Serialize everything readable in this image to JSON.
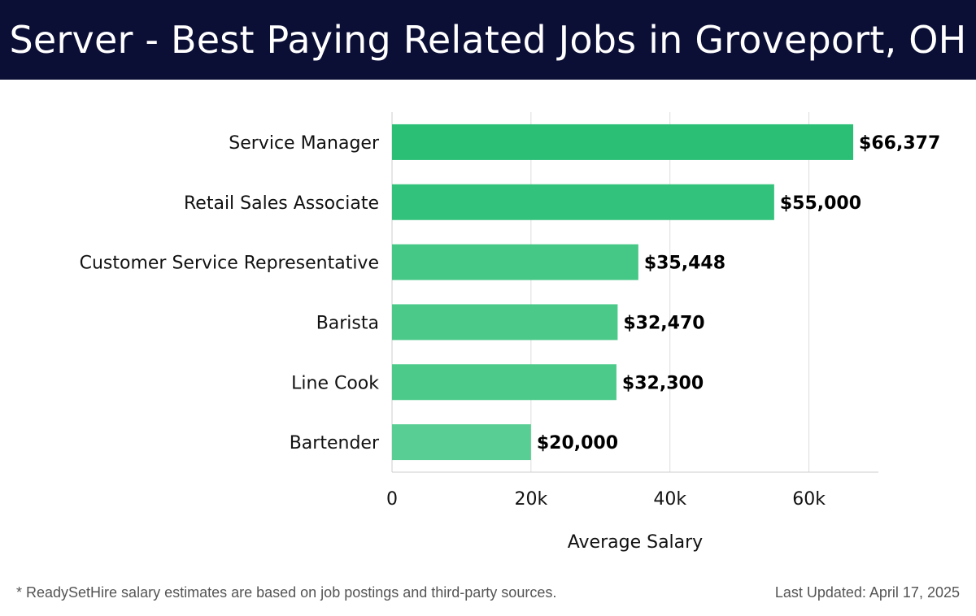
{
  "header": {
    "title": "Server - Best Paying Related Jobs in Groveport, OH"
  },
  "chart_data": {
    "type": "bar",
    "orientation": "horizontal",
    "categories": [
      "Service Manager",
      "Retail Sales Associate",
      "Customer Service Representative",
      "Barista",
      "Line Cook",
      "Bartender"
    ],
    "values": [
      66377,
      55000,
      35448,
      32470,
      32300,
      20000
    ],
    "data_labels": [
      "$66,377",
      "$55,000",
      "$35,448",
      "$32,470",
      "$32,300",
      "$20,000"
    ],
    "xlabel": "Average Salary",
    "ylabel": "",
    "xlim": [
      0,
      70000
    ],
    "xticks": [
      0,
      20000,
      40000,
      60000
    ],
    "xtick_labels": [
      "0",
      "20k",
      "40k",
      "60k"
    ],
    "grid": "vertical",
    "bar_colors": [
      "#2bbf76",
      "#33c27b",
      "#45c785",
      "#4bc989",
      "#4cca8a",
      "#59ce94"
    ]
  },
  "footer": {
    "note": "* ReadySetHire salary estimates are based on job postings and third-party sources.",
    "updated": "Last Updated: April 17, 2025"
  }
}
